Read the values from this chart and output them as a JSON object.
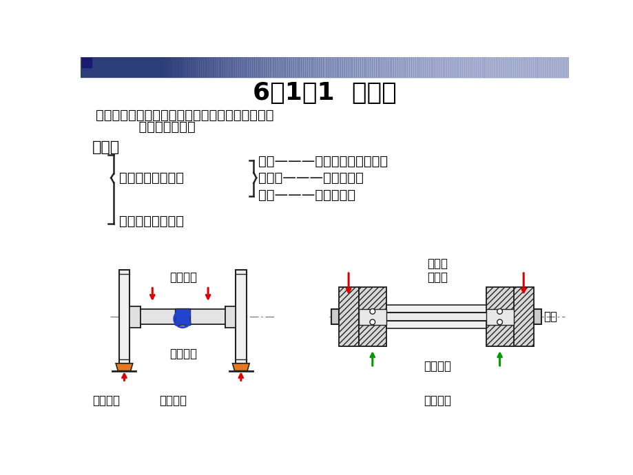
{
  "title": "6．1．1  轴分类",
  "title_fontsize": 26,
  "bg_color": "#ffffff",
  "header_bar_color": "#2c3e7a",
  "text_color": "#000000",
  "line1": "功用：用来支撑旋转的机械零件，如齿轮、带轮、",
  "line2": "          链轮、凸轮等。",
  "fenlei": "分类：",
  "by_load": "按承受载荷分有：",
  "zhuanzhou": "转轴———传递扭矩又承受弯矩",
  "chuandongzhou": "传动轴———只传递扭矩",
  "xinzhou": "心轴———只承受弯矩",
  "by_shape": "按轴的形状分有：",
  "label_chejian": "车厢重力",
  "label_zhuandong": "转动心轴",
  "label_zhicheng": "支撑反力",
  "label_huoche": "火车轮轴",
  "label_zixingche": "自行车\n前轮轴",
  "label_qianya": "前叉",
  "label_qianlun": "前轮轮毂",
  "label_gudingxin": "固定心轴",
  "orange_color": "#e87820",
  "red_color": "#dd0000",
  "green_color": "#009900",
  "blue_color": "#2244cc",
  "dark_color": "#222222",
  "hatch_color": "#444444"
}
